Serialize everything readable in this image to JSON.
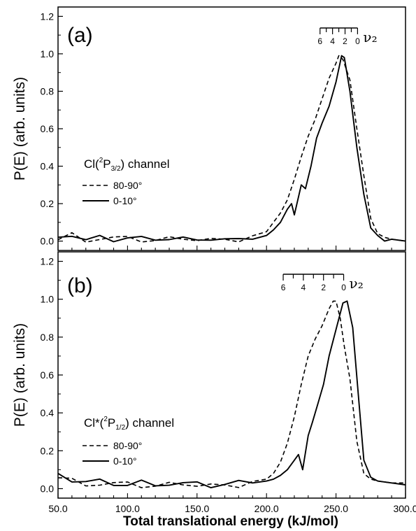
{
  "chart_data": [
    {
      "type": "line",
      "panel_label": "(a)",
      "ylabel": "P(E) (arb. units)",
      "ylim": [
        -0.05,
        1.25
      ],
      "xlim": [
        50,
        300
      ],
      "yticks": [
        "0.0",
        "0.2",
        "0.4",
        "0.6",
        "0.8",
        "1.0",
        "1.2"
      ],
      "ytick_values": [
        0.0,
        0.2,
        0.4,
        0.6,
        0.8,
        1.0,
        1.2
      ],
      "legend_title": {
        "main": "Cl(",
        "sup": "2",
        "sym": "P",
        "sub": "3/2",
        "rest": ") channel"
      },
      "series": [
        {
          "name": "80-90°",
          "style": "dashed",
          "x": [
            50,
            60,
            70,
            80,
            90,
            100,
            110,
            120,
            130,
            140,
            150,
            160,
            170,
            180,
            190,
            200,
            205,
            210,
            215,
            220,
            225,
            230,
            235,
            240,
            245,
            250,
            252,
            255,
            260,
            265,
            270,
            275,
            280,
            285,
            290,
            300
          ],
          "y": [
            0.01,
            0.03,
            0.0,
            0.02,
            0.01,
            0.02,
            0.01,
            0.0,
            0.01,
            0.02,
            0.01,
            0.0,
            0.01,
            0.01,
            0.02,
            0.05,
            0.1,
            0.15,
            0.22,
            0.33,
            0.45,
            0.56,
            0.65,
            0.76,
            0.87,
            0.95,
            0.99,
            0.97,
            0.86,
            0.6,
            0.35,
            0.12,
            0.04,
            0.02,
            0.01,
            0.0
          ]
        },
        {
          "name": "0-10°",
          "style": "solid",
          "x": [
            50,
            60,
            70,
            80,
            90,
            100,
            110,
            120,
            130,
            140,
            150,
            160,
            170,
            180,
            190,
            200,
            205,
            210,
            215,
            218,
            220,
            225,
            228,
            232,
            236,
            240,
            245,
            250,
            254,
            256,
            260,
            265,
            270,
            275,
            280,
            285,
            290,
            300
          ],
          "y": [
            0.02,
            0.04,
            0.0,
            0.02,
            0.01,
            0.02,
            0.01,
            0.01,
            0.02,
            0.01,
            0.0,
            0.02,
            0.01,
            0.0,
            0.02,
            0.03,
            0.06,
            0.1,
            0.17,
            0.2,
            0.14,
            0.3,
            0.28,
            0.4,
            0.55,
            0.63,
            0.72,
            0.85,
            0.99,
            0.98,
            0.8,
            0.5,
            0.25,
            0.07,
            0.03,
            0.0,
            0.01,
            0.0
          ]
        }
      ],
      "nu_scale": {
        "label": "ν₂",
        "ticks": [
          "6",
          "4",
          "2",
          "0"
        ],
        "tick_energies": [
          238.5,
          247.5,
          256.5,
          265.5
        ]
      }
    },
    {
      "type": "line",
      "panel_label": "(b)",
      "ylabel": "P(E) (arb. units)",
      "ylim": [
        -0.05,
        1.25
      ],
      "xlim": [
        50,
        300
      ],
      "yticks": [
        "0.0",
        "0.2",
        "0.4",
        "0.6",
        "0.8",
        "1.0",
        "1.2"
      ],
      "ytick_values": [
        0.0,
        0.2,
        0.4,
        0.6,
        0.8,
        1.0,
        1.2
      ],
      "xticks": [
        "50.0",
        "100.0",
        "150.0",
        "200.0",
        "250.0",
        "300.0"
      ],
      "xtick_values": [
        50,
        100,
        150,
        200,
        250,
        300
      ],
      "xlabel": "Total translational energy (kJ/mol)",
      "legend_title": {
        "main": "Cl*(",
        "sup": "2",
        "sym": "P",
        "sub": "1/2",
        "rest": ") channel"
      },
      "series": [
        {
          "name": "80-90°",
          "style": "dashed",
          "x": [
            50,
            60,
            70,
            80,
            90,
            100,
            110,
            120,
            130,
            140,
            150,
            160,
            170,
            180,
            190,
            200,
            205,
            210,
            215,
            220,
            225,
            230,
            235,
            240,
            245,
            248,
            250,
            253,
            256,
            260,
            265,
            270,
            275,
            280,
            290,
            300
          ],
          "y": [
            0.06,
            0.04,
            0.02,
            0.03,
            0.02,
            0.03,
            0.02,
            0.01,
            0.02,
            0.03,
            0.02,
            0.01,
            0.02,
            0.02,
            0.03,
            0.05,
            0.08,
            0.14,
            0.24,
            0.38,
            0.55,
            0.7,
            0.79,
            0.86,
            0.95,
            0.99,
            0.99,
            0.9,
            0.75,
            0.58,
            0.25,
            0.08,
            0.05,
            0.04,
            0.03,
            0.03
          ]
        },
        {
          "name": "0-10°",
          "style": "solid",
          "x": [
            50,
            60,
            70,
            80,
            90,
            100,
            110,
            120,
            130,
            140,
            150,
            160,
            170,
            180,
            190,
            200,
            205,
            210,
            215,
            220,
            223,
            226,
            230,
            233,
            237,
            241,
            245,
            250,
            255,
            258,
            262,
            266,
            270,
            275,
            280,
            290,
            300
          ],
          "y": [
            0.08,
            0.05,
            0.03,
            0.04,
            0.03,
            0.02,
            0.03,
            0.02,
            0.03,
            0.02,
            0.03,
            0.02,
            0.02,
            0.03,
            0.04,
            0.04,
            0.05,
            0.07,
            0.1,
            0.15,
            0.18,
            0.1,
            0.28,
            0.35,
            0.45,
            0.55,
            0.7,
            0.84,
            0.98,
            0.99,
            0.85,
            0.5,
            0.15,
            0.06,
            0.04,
            0.03,
            0.02
          ]
        }
      ],
      "nu_scale": {
        "label": "ν₂",
        "ticks": [
          "6",
          "4",
          "2",
          "0"
        ],
        "tick_energies": [
          212,
          226.5,
          241,
          255.5
        ]
      }
    }
  ]
}
